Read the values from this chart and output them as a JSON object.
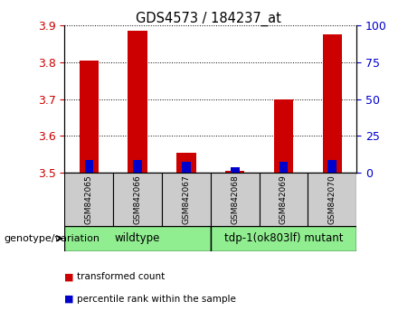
{
  "title": "GDS4573 / 184237_at",
  "samples": [
    "GSM842065",
    "GSM842066",
    "GSM842067",
    "GSM842068",
    "GSM842069",
    "GSM842070"
  ],
  "red_values": [
    3.805,
    3.885,
    3.555,
    3.505,
    3.7,
    3.875
  ],
  "blue_values": [
    3.535,
    3.535,
    3.53,
    3.515,
    3.53,
    3.535
  ],
  "red_base": 3.5,
  "ylim": [
    3.5,
    3.9
  ],
  "yticks_left": [
    3.5,
    3.6,
    3.7,
    3.8,
    3.9
  ],
  "yticks_right": [
    0,
    25,
    50,
    75,
    100
  ],
  "groups": [
    {
      "label": "wildtype",
      "indices": [
        0,
        1,
        2
      ],
      "color": "#90EE90"
    },
    {
      "label": "tdp-1(ok803lf) mutant",
      "indices": [
        3,
        4,
        5
      ],
      "color": "#90EE90"
    }
  ],
  "legend_items": [
    {
      "label": "transformed count",
      "color": "#CC0000"
    },
    {
      "label": "percentile rank within the sample",
      "color": "#0000CC"
    }
  ],
  "red_color": "#CC0000",
  "blue_color": "#0000CC",
  "left_tick_color": "#CC0000",
  "right_tick_color": "#0000CC",
  "grid_color": "black",
  "xlabel_text": "genotype/variation",
  "bar_width": 0.4,
  "blue_bar_width": 0.18,
  "fig_width": 4.61,
  "fig_height": 3.54,
  "fig_dpi": 100
}
